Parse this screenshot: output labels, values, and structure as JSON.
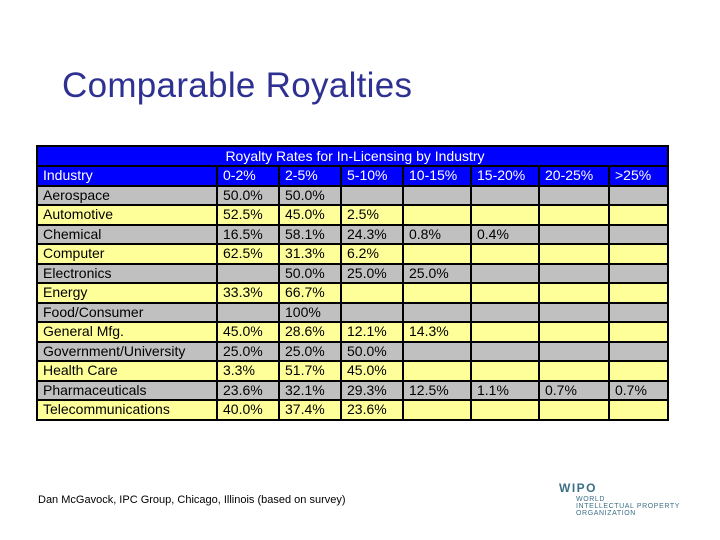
{
  "slide": {
    "title": "Comparable Royalties",
    "source": "Dan McGavock, IPC Group, Chicago, Illinois (based on survey)"
  },
  "table": {
    "caption": "Royalty Rates for In-Licensing by Industry",
    "headers": [
      "Industry",
      "0-2%",
      "2-5%",
      "5-10%",
      "10-15%",
      "15-20%",
      "20-25%",
      ">25%"
    ],
    "rows": [
      [
        "Aerospace",
        "50.0%",
        "50.0%",
        "",
        "",
        "",
        "",
        ""
      ],
      [
        "Automotive",
        "52.5%",
        "45.0%",
        "2.5%",
        "",
        "",
        "",
        ""
      ],
      [
        "Chemical",
        "16.5%",
        "58.1%",
        "24.3%",
        "0.8%",
        "0.4%",
        "",
        ""
      ],
      [
        "Computer",
        "62.5%",
        "31.3%",
        "6.2%",
        "",
        "",
        "",
        ""
      ],
      [
        "Electronics",
        "",
        "50.0%",
        "25.0%",
        "25.0%",
        "",
        "",
        ""
      ],
      [
        "Energy",
        "33.3%",
        "66.7%",
        "",
        "",
        "",
        "",
        ""
      ],
      [
        "Food/Consumer",
        "",
        "100%",
        "",
        "",
        "",
        "",
        ""
      ],
      [
        "General Mfg.",
        "45.0%",
        "28.6%",
        "12.1%",
        "14.3%",
        "",
        "",
        ""
      ],
      [
        "Government/University",
        "25.0%",
        "25.0%",
        "50.0%",
        "",
        "",
        "",
        ""
      ],
      [
        "Health Care",
        "3.3%",
        "51.7%",
        "45.0%",
        "",
        "",
        "",
        ""
      ],
      [
        "Pharmaceuticals",
        "23.6%",
        "32.1%",
        "29.3%",
        "12.5%",
        "1.1%",
        "0.7%",
        "0.7%"
      ],
      [
        "Telecommunications",
        "40.0%",
        "37.4%",
        "23.6%",
        "",
        "",
        "",
        ""
      ]
    ]
  },
  "logo": {
    "mark": "WIPO",
    "line1": "WORLD",
    "line2": "INTELLECTUAL PROPERTY",
    "line3": "ORGANIZATION"
  },
  "colors": {
    "title": "#2e3192",
    "header_bg": "#0000ff",
    "row_gray": "#c0c0c0",
    "row_yellow": "#ffff99"
  }
}
